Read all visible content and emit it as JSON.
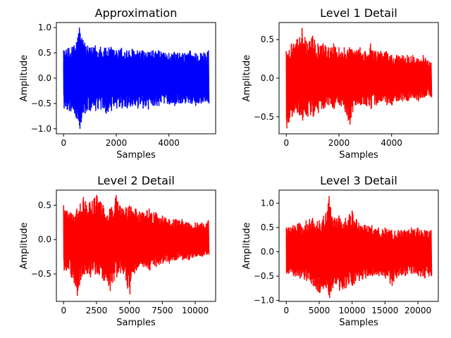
{
  "chart_data": [
    {
      "type": "line",
      "title": "Approximation",
      "xlabel": "Samples",
      "ylabel": "Amplitude",
      "color": "#0000ff",
      "xlim": [
        -275,
        5775
      ],
      "ylim": [
        -1.1,
        1.1
      ],
      "xticks": [
        0,
        2000,
        4000
      ],
      "xtick_labels": [
        "0",
        "2000",
        "4000"
      ],
      "yticks": [
        -1.0,
        -0.5,
        0.0,
        0.5,
        1.0
      ],
      "ytick_labels": [
        "−1.0",
        "−0.5",
        "0.0",
        "0.5",
        "1.0"
      ],
      "series": [
        {
          "x_range": [
            0,
            5500
          ],
          "envelope_x": [
            0,
            200,
            400,
            600,
            800,
            1000,
            1200,
            1400,
            1600,
            1800,
            2000,
            2200,
            2400,
            2600,
            2800,
            3000,
            3200,
            3400,
            3600,
            3800,
            4000,
            4200,
            4400,
            4600,
            4800,
            5000,
            5200,
            5500
          ],
          "upper": [
            0.55,
            0.6,
            0.65,
            1.0,
            0.7,
            0.6,
            0.65,
            0.62,
            0.6,
            0.62,
            0.55,
            0.6,
            0.55,
            0.58,
            0.55,
            0.55,
            0.52,
            0.55,
            0.55,
            0.5,
            0.5,
            0.52,
            0.5,
            0.5,
            0.55,
            0.5,
            0.5,
            0.55
          ],
          "lower": [
            -0.6,
            -0.65,
            -0.7,
            -1.0,
            -0.7,
            -0.65,
            -0.65,
            -0.62,
            -0.7,
            -0.65,
            -0.6,
            -0.6,
            -0.6,
            -0.55,
            -0.6,
            -0.6,
            -0.62,
            -0.55,
            -0.55,
            -0.5,
            -0.52,
            -0.55,
            -0.5,
            -0.5,
            -0.5,
            -0.55,
            -0.5,
            -0.5
          ]
        }
      ]
    },
    {
      "type": "line",
      "title": "Level 1 Detail",
      "xlabel": "Samples",
      "ylabel": "Amplitude",
      "color": "#ff0000",
      "xlim": [
        -275,
        5775
      ],
      "ylim": [
        -0.72,
        0.72
      ],
      "xticks": [
        0,
        2000,
        4000
      ],
      "xtick_labels": [
        "0",
        "2000",
        "4000"
      ],
      "yticks": [
        -0.5,
        0.0,
        0.5
      ],
      "ytick_labels": [
        "−0.5",
        "0.0",
        "0.5"
      ],
      "series": [
        {
          "x_range": [
            0,
            5500
          ],
          "envelope_x": [
            0,
            200,
            400,
            600,
            800,
            1000,
            1200,
            1400,
            1600,
            1800,
            2000,
            2200,
            2400,
            2600,
            2800,
            3000,
            3200,
            3400,
            3600,
            3800,
            4000,
            4200,
            4400,
            4600,
            4800,
            5000,
            5200,
            5500
          ],
          "upper": [
            0.35,
            0.45,
            0.5,
            0.65,
            0.45,
            0.55,
            0.45,
            0.45,
            0.4,
            0.45,
            0.4,
            0.4,
            0.4,
            0.35,
            0.4,
            0.35,
            0.45,
            0.35,
            0.35,
            0.35,
            0.3,
            0.3,
            0.3,
            0.3,
            0.3,
            0.25,
            0.3,
            0.2
          ],
          "lower": [
            -0.65,
            -0.5,
            -0.45,
            -0.55,
            -0.5,
            -0.5,
            -0.45,
            -0.4,
            -0.35,
            -0.4,
            -0.35,
            -0.4,
            -0.6,
            -0.35,
            -0.35,
            -0.35,
            -0.4,
            -0.35,
            -0.3,
            -0.35,
            -0.35,
            -0.3,
            -0.3,
            -0.3,
            -0.25,
            -0.3,
            -0.25,
            -0.25
          ]
        }
      ]
    },
    {
      "type": "line",
      "title": "Level 2 Detail",
      "xlabel": "Samples",
      "ylabel": "Amplitude",
      "color": "#ff0000",
      "xlim": [
        -550,
        11550
      ],
      "ylim": [
        -0.9,
        0.72
      ],
      "xticks": [
        0,
        2500,
        5000,
        7500,
        10000
      ],
      "xtick_labels": [
        "0",
        "2500",
        "5000",
        "7500",
        "10000"
      ],
      "yticks": [
        -0.5,
        0.0,
        0.5
      ],
      "ytick_labels": [
        "−0.5",
        "0.0",
        "0.5"
      ],
      "series": [
        {
          "x_range": [
            0,
            11000
          ],
          "envelope_x": [
            0,
            500,
            1000,
            1500,
            2000,
            2500,
            3000,
            3500,
            4000,
            4500,
            5000,
            5500,
            6000,
            6500,
            7000,
            7500,
            8000,
            8500,
            9000,
            9500,
            10000,
            10500,
            11000
          ],
          "upper": [
            0.5,
            0.4,
            0.45,
            0.62,
            0.55,
            0.65,
            0.5,
            0.45,
            0.65,
            0.45,
            0.5,
            0.45,
            0.4,
            0.45,
            0.4,
            0.35,
            0.3,
            0.3,
            0.3,
            0.25,
            0.25,
            0.25,
            0.28
          ],
          "lower": [
            -0.45,
            -0.5,
            -0.82,
            -0.5,
            -0.55,
            -0.5,
            -0.6,
            -0.75,
            -0.55,
            -0.5,
            -0.8,
            -0.45,
            -0.4,
            -0.45,
            -0.4,
            -0.35,
            -0.35,
            -0.3,
            -0.3,
            -0.3,
            -0.25,
            -0.25,
            -0.22
          ]
        }
      ]
    },
    {
      "type": "line",
      "title": "Level 3 Detail",
      "xlabel": "Samples",
      "ylabel": "Amplitude",
      "color": "#ff0000",
      "xlim": [
        -1100,
        23100
      ],
      "ylim": [
        -1.02,
        1.27
      ],
      "xticks": [
        0,
        5000,
        10000,
        15000,
        20000
      ],
      "xtick_labels": [
        "0",
        "5000",
        "10000",
        "15000",
        "20000"
      ],
      "yticks": [
        -1.0,
        -0.5,
        0.0,
        0.5,
        1.0
      ],
      "ytick_labels": [
        "−1.0",
        "−0.5",
        "0.0",
        "0.5",
        "1.0"
      ],
      "series": [
        {
          "x_range": [
            0,
            22000
          ],
          "envelope_x": [
            0,
            1000,
            2000,
            3000,
            4000,
            5000,
            6000,
            6500,
            7000,
            8000,
            9000,
            10000,
            11000,
            12000,
            13000,
            14000,
            15000,
            16000,
            17000,
            18000,
            19000,
            20000,
            21000,
            22000
          ],
          "upper": [
            0.5,
            0.55,
            0.6,
            0.65,
            0.7,
            0.65,
            0.8,
            1.15,
            0.7,
            0.75,
            0.7,
            0.85,
            0.6,
            0.55,
            0.55,
            0.5,
            0.5,
            0.45,
            0.45,
            0.45,
            0.5,
            0.5,
            0.45,
            0.45
          ],
          "lower": [
            -0.45,
            -0.5,
            -0.55,
            -0.6,
            -0.7,
            -0.85,
            -0.75,
            -0.95,
            -0.75,
            -0.8,
            -0.75,
            -0.7,
            -0.6,
            -0.55,
            -0.5,
            -0.5,
            -0.55,
            -0.7,
            -0.5,
            -0.5,
            -0.45,
            -0.5,
            -0.55,
            -0.5
          ]
        }
      ]
    }
  ]
}
